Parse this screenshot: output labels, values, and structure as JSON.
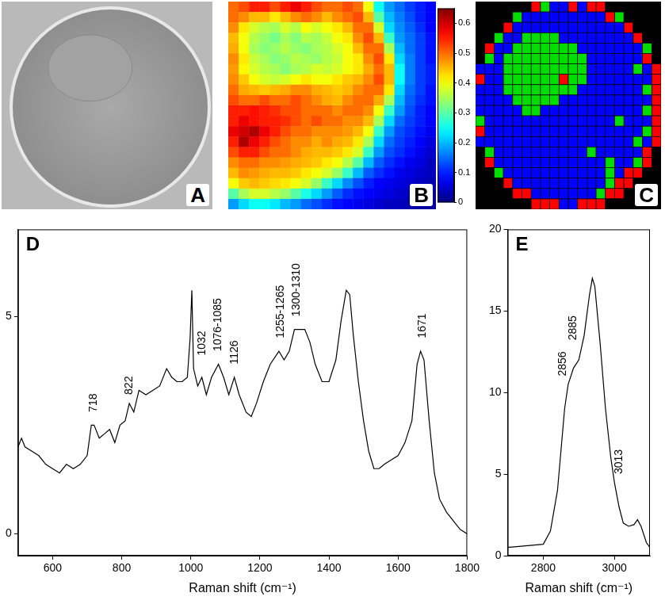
{
  "chart_data": [
    {
      "type": "image",
      "panel": "A"
    },
    {
      "type": "heatmap",
      "panel": "B",
      "tick_labels": false,
      "cells": [
        [
          0.5,
          0.52,
          0.55,
          0.55,
          0.52,
          0.55,
          0.58,
          0.55,
          0.52,
          0.5,
          0.5,
          0.52,
          0.5,
          0.4,
          0.25,
          0.18,
          0.15,
          0.12,
          0.1,
          0.08
        ],
        [
          0.5,
          0.48,
          0.45,
          0.45,
          0.42,
          0.45,
          0.48,
          0.5,
          0.48,
          0.45,
          0.48,
          0.5,
          0.52,
          0.45,
          0.3,
          0.2,
          0.16,
          0.13,
          0.1,
          0.08
        ],
        [
          0.48,
          0.42,
          0.38,
          0.36,
          0.35,
          0.38,
          0.36,
          0.4,
          0.38,
          0.4,
          0.42,
          0.45,
          0.5,
          0.5,
          0.38,
          0.22,
          0.17,
          0.14,
          0.11,
          0.08
        ],
        [
          0.45,
          0.4,
          0.36,
          0.34,
          0.32,
          0.35,
          0.33,
          0.36,
          0.35,
          0.37,
          0.4,
          0.42,
          0.48,
          0.52,
          0.45,
          0.28,
          0.18,
          0.15,
          0.12,
          0.09
        ],
        [
          0.46,
          0.4,
          0.35,
          0.33,
          0.34,
          0.36,
          0.34,
          0.33,
          0.35,
          0.36,
          0.38,
          0.4,
          0.45,
          0.5,
          0.5,
          0.35,
          0.2,
          0.15,
          0.12,
          0.09
        ],
        [
          0.48,
          0.42,
          0.37,
          0.35,
          0.33,
          0.34,
          0.36,
          0.35,
          0.34,
          0.36,
          0.37,
          0.4,
          0.42,
          0.48,
          0.52,
          0.42,
          0.22,
          0.16,
          0.12,
          0.09
        ],
        [
          0.47,
          0.41,
          0.38,
          0.36,
          0.35,
          0.33,
          0.35,
          0.36,
          0.38,
          0.37,
          0.38,
          0.4,
          0.42,
          0.46,
          0.5,
          0.45,
          0.25,
          0.16,
          0.12,
          0.1
        ],
        [
          0.48,
          0.44,
          0.4,
          0.38,
          0.37,
          0.38,
          0.4,
          0.42,
          0.4,
          0.4,
          0.42,
          0.44,
          0.45,
          0.48,
          0.52,
          0.45,
          0.25,
          0.16,
          0.12,
          0.1
        ],
        [
          0.5,
          0.46,
          0.45,
          0.44,
          0.45,
          0.46,
          0.48,
          0.48,
          0.46,
          0.45,
          0.44,
          0.45,
          0.48,
          0.5,
          0.5,
          0.42,
          0.22,
          0.15,
          0.12,
          0.09
        ],
        [
          0.52,
          0.5,
          0.5,
          0.52,
          0.5,
          0.5,
          0.52,
          0.5,
          0.48,
          0.46,
          0.45,
          0.48,
          0.5,
          0.5,
          0.46,
          0.35,
          0.2,
          0.14,
          0.11,
          0.09
        ],
        [
          0.55,
          0.55,
          0.56,
          0.55,
          0.54,
          0.52,
          0.52,
          0.5,
          0.5,
          0.5,
          0.48,
          0.5,
          0.5,
          0.48,
          0.4,
          0.28,
          0.18,
          0.13,
          0.1,
          0.08
        ],
        [
          0.55,
          0.58,
          0.56,
          0.55,
          0.55,
          0.54,
          0.52,
          0.5,
          0.52,
          0.5,
          0.5,
          0.48,
          0.48,
          0.45,
          0.35,
          0.22,
          0.15,
          0.12,
          0.1,
          0.08
        ],
        [
          0.58,
          0.6,
          0.62,
          0.58,
          0.55,
          0.52,
          0.5,
          0.5,
          0.48,
          0.48,
          0.48,
          0.47,
          0.45,
          0.4,
          0.28,
          0.18,
          0.13,
          0.11,
          0.09,
          0.07
        ],
        [
          0.55,
          0.62,
          0.58,
          0.55,
          0.52,
          0.5,
          0.48,
          0.48,
          0.46,
          0.48,
          0.46,
          0.45,
          0.42,
          0.35,
          0.22,
          0.15,
          0.12,
          0.1,
          0.08,
          0.06
        ],
        [
          0.52,
          0.55,
          0.55,
          0.52,
          0.5,
          0.5,
          0.48,
          0.46,
          0.45,
          0.45,
          0.44,
          0.42,
          0.38,
          0.28,
          0.18,
          0.13,
          0.11,
          0.09,
          0.07,
          0.05
        ],
        [
          0.48,
          0.5,
          0.5,
          0.48,
          0.48,
          0.47,
          0.46,
          0.45,
          0.44,
          0.42,
          0.4,
          0.36,
          0.3,
          0.2,
          0.14,
          0.11,
          0.09,
          0.07,
          0.06,
          0.04
        ],
        [
          0.45,
          0.48,
          0.47,
          0.46,
          0.45,
          0.45,
          0.44,
          0.42,
          0.4,
          0.38,
          0.34,
          0.28,
          0.2,
          0.14,
          0.11,
          0.09,
          0.07,
          0.06,
          0.05,
          0.04
        ],
        [
          0.4,
          0.44,
          0.45,
          0.44,
          0.43,
          0.42,
          0.4,
          0.38,
          0.34,
          0.28,
          0.22,
          0.17,
          0.13,
          0.1,
          0.08,
          0.07,
          0.06,
          0.05,
          0.04,
          0.03
        ],
        [
          0.3,
          0.35,
          0.38,
          0.38,
          0.36,
          0.34,
          0.3,
          0.26,
          0.22,
          0.18,
          0.14,
          0.11,
          0.09,
          0.08,
          0.07,
          0.06,
          0.05,
          0.04,
          0.03,
          0.02
        ],
        [
          0.18,
          0.22,
          0.25,
          0.25,
          0.23,
          0.2,
          0.18,
          0.15,
          0.13,
          0.11,
          0.09,
          0.08,
          0.07,
          0.06,
          0.05,
          0.04,
          0.04,
          0.03,
          0.02,
          0.02
        ]
      ],
      "colorbar": {
        "range": [
          0,
          0.65
        ],
        "ticks": [
          0,
          0.1,
          0.2,
          0.3,
          0.4,
          0.5,
          0.6
        ]
      }
    },
    {
      "type": "cluster_map",
      "panel": "C",
      "tick_labels": false,
      "colors": [
        "#000000",
        "#0000ff",
        "#00dd00",
        "#ff0000"
      ],
      "cells": [
        [
          0,
          0,
          0,
          0,
          0,
          0,
          3,
          2,
          1,
          1,
          3,
          1,
          3,
          3,
          0,
          0,
          0,
          0,
          0,
          0
        ],
        [
          0,
          0,
          0,
          0,
          2,
          1,
          1,
          1,
          1,
          1,
          1,
          1,
          1,
          1,
          3,
          2,
          0,
          0,
          0,
          0
        ],
        [
          0,
          0,
          0,
          3,
          1,
          1,
          1,
          1,
          1,
          1,
          1,
          1,
          1,
          1,
          1,
          1,
          3,
          0,
          0,
          0
        ],
        [
          0,
          0,
          2,
          1,
          1,
          2,
          2,
          2,
          2,
          1,
          1,
          1,
          1,
          1,
          1,
          1,
          1,
          3,
          0,
          0
        ],
        [
          0,
          3,
          1,
          1,
          2,
          2,
          2,
          2,
          2,
          2,
          2,
          1,
          1,
          1,
          1,
          1,
          1,
          1,
          2,
          0
        ],
        [
          0,
          2,
          1,
          2,
          2,
          2,
          2,
          2,
          2,
          2,
          2,
          2,
          1,
          1,
          1,
          1,
          1,
          1,
          3,
          0
        ],
        [
          1,
          1,
          1,
          2,
          2,
          2,
          2,
          2,
          2,
          2,
          2,
          2,
          1,
          1,
          1,
          1,
          1,
          2,
          1,
          3
        ],
        [
          3,
          1,
          1,
          2,
          2,
          2,
          2,
          2,
          2,
          3,
          2,
          2,
          1,
          1,
          1,
          1,
          1,
          1,
          1,
          3
        ],
        [
          1,
          1,
          1,
          2,
          2,
          2,
          2,
          2,
          2,
          2,
          2,
          1,
          1,
          1,
          1,
          1,
          1,
          1,
          2,
          3
        ],
        [
          1,
          1,
          1,
          1,
          2,
          2,
          2,
          2,
          2,
          1,
          1,
          1,
          1,
          1,
          1,
          1,
          1,
          1,
          1,
          3
        ],
        [
          1,
          1,
          1,
          1,
          1,
          2,
          2,
          1,
          1,
          1,
          1,
          1,
          1,
          1,
          1,
          1,
          1,
          1,
          2,
          3
        ],
        [
          2,
          1,
          1,
          1,
          1,
          1,
          1,
          1,
          1,
          1,
          1,
          1,
          1,
          1,
          1,
          2,
          1,
          1,
          1,
          3
        ],
        [
          3,
          1,
          1,
          1,
          1,
          1,
          1,
          1,
          1,
          1,
          1,
          1,
          1,
          1,
          1,
          1,
          1,
          1,
          2,
          3
        ],
        [
          1,
          1,
          1,
          1,
          1,
          1,
          1,
          1,
          1,
          1,
          1,
          1,
          1,
          1,
          1,
          1,
          1,
          2,
          1,
          3
        ],
        [
          0,
          2,
          1,
          1,
          1,
          1,
          1,
          1,
          1,
          1,
          1,
          1,
          2,
          1,
          1,
          1,
          1,
          1,
          3,
          0
        ],
        [
          0,
          3,
          1,
          1,
          1,
          1,
          1,
          1,
          1,
          1,
          1,
          1,
          1,
          1,
          2,
          1,
          1,
          2,
          3,
          0
        ],
        [
          0,
          0,
          2,
          1,
          1,
          1,
          1,
          1,
          1,
          1,
          1,
          1,
          1,
          1,
          2,
          1,
          3,
          3,
          0,
          0
        ],
        [
          0,
          0,
          0,
          3,
          1,
          1,
          1,
          1,
          1,
          1,
          1,
          1,
          1,
          1,
          2,
          3,
          3,
          0,
          0,
          0
        ],
        [
          0,
          0,
          0,
          0,
          3,
          3,
          1,
          1,
          1,
          1,
          1,
          1,
          1,
          2,
          3,
          3,
          0,
          0,
          0,
          0
        ],
        [
          0,
          0,
          0,
          0,
          0,
          0,
          3,
          3,
          3,
          1,
          1,
          3,
          3,
          3,
          0,
          0,
          0,
          0,
          0,
          0
        ]
      ]
    },
    {
      "type": "line",
      "panel": "D",
      "x_label": "Raman shift (cm⁻¹)",
      "color": "#000000",
      "xlim": [
        500,
        1800
      ],
      "xticks": [
        600,
        800,
        1000,
        1200,
        1400,
        1600,
        1800
      ],
      "ylim": [
        -0.5,
        7
      ],
      "yticks": [
        0,
        5
      ],
      "x": [
        500,
        510,
        520,
        540,
        560,
        580,
        600,
        620,
        640,
        660,
        680,
        700,
        712,
        720,
        735,
        750,
        765,
        780,
        795,
        810,
        822,
        835,
        850,
        870,
        890,
        910,
        930,
        945,
        960,
        975,
        990,
        998,
        1003,
        1008,
        1020,
        1032,
        1045,
        1060,
        1080,
        1095,
        1110,
        1126,
        1140,
        1160,
        1175,
        1190,
        1210,
        1230,
        1255,
        1270,
        1285,
        1300,
        1315,
        1330,
        1345,
        1360,
        1380,
        1400,
        1420,
        1435,
        1450,
        1460,
        1470,
        1485,
        1500,
        1515,
        1530,
        1545,
        1560,
        1580,
        1600,
        1620,
        1640,
        1655,
        1665,
        1675,
        1690,
        1705,
        1720,
        1740,
        1760,
        1780,
        1800
      ],
      "values": [
        2.0,
        2.2,
        2.0,
        1.9,
        1.8,
        1.6,
        1.5,
        1.4,
        1.6,
        1.5,
        1.6,
        1.8,
        2.5,
        2.5,
        2.2,
        2.3,
        2.4,
        2.1,
        2.5,
        2.6,
        3.0,
        2.8,
        3.3,
        3.2,
        3.3,
        3.4,
        3.8,
        3.6,
        3.5,
        3.5,
        3.6,
        4.5,
        5.6,
        3.8,
        3.4,
        3.6,
        3.2,
        3.6,
        3.9,
        3.6,
        3.2,
        3.6,
        3.2,
        2.8,
        2.7,
        3.0,
        3.5,
        3.9,
        4.2,
        4.0,
        4.2,
        4.7,
        4.7,
        4.7,
        4.4,
        3.9,
        3.5,
        3.5,
        4.0,
        4.9,
        5.6,
        5.5,
        4.6,
        3.5,
        2.6,
        1.9,
        1.5,
        1.5,
        1.6,
        1.7,
        1.8,
        2.1,
        2.6,
        3.9,
        4.2,
        4.0,
        2.6,
        1.4,
        0.8,
        0.5,
        0.3,
        0.1,
        0.0
      ],
      "annotations": [
        {
          "text": "718",
          "x": 718,
          "y": 2.8
        },
        {
          "text": "822",
          "x": 822,
          "y": 3.2
        },
        {
          "text": "1032",
          "x": 1032,
          "y": 4.1
        },
        {
          "text": "1076-1085",
          "x": 1080,
          "y": 4.2
        },
        {
          "text": "1126",
          "x": 1126,
          "y": 3.9
        },
        {
          "text": "1255-1265",
          "x": 1260,
          "y": 4.5
        },
        {
          "text": "1300-1310",
          "x": 1305,
          "y": 5.0
        },
        {
          "text": "1671",
          "x": 1671,
          "y": 4.5
        }
      ]
    },
    {
      "type": "line",
      "panel": "E",
      "x_label": "Raman shift (cm⁻¹)",
      "color": "#000000",
      "xlim": [
        2700,
        3100
      ],
      "xticks": [
        2800,
        3000
      ],
      "ylim": [
        0,
        20
      ],
      "yticks": [
        0,
        5,
        10,
        15,
        20
      ],
      "x": [
        2700,
        2750,
        2800,
        2820,
        2840,
        2850,
        2860,
        2870,
        2885,
        2900,
        2915,
        2930,
        2938,
        2945,
        2960,
        2975,
        2990,
        3000,
        3013,
        3025,
        3040,
        3055,
        3065,
        3075,
        3090,
        3100
      ],
      "values": [
        0.5,
        0.6,
        0.7,
        1.5,
        4.0,
        6.5,
        9.0,
        10.5,
        11.5,
        12.0,
        13.5,
        16.0,
        17.0,
        16.5,
        13.0,
        9.0,
        6.0,
        4.5,
        3.0,
        2.0,
        1.8,
        1.9,
        2.2,
        1.8,
        0.8,
        0.5
      ],
      "annotations": [
        {
          "text": "2856",
          "x": 2856,
          "y": 11.0
        },
        {
          "text": "2885",
          "x": 2885,
          "y": 13.2
        },
        {
          "text": "3013",
          "x": 3013,
          "y": 5.0
        }
      ]
    }
  ]
}
